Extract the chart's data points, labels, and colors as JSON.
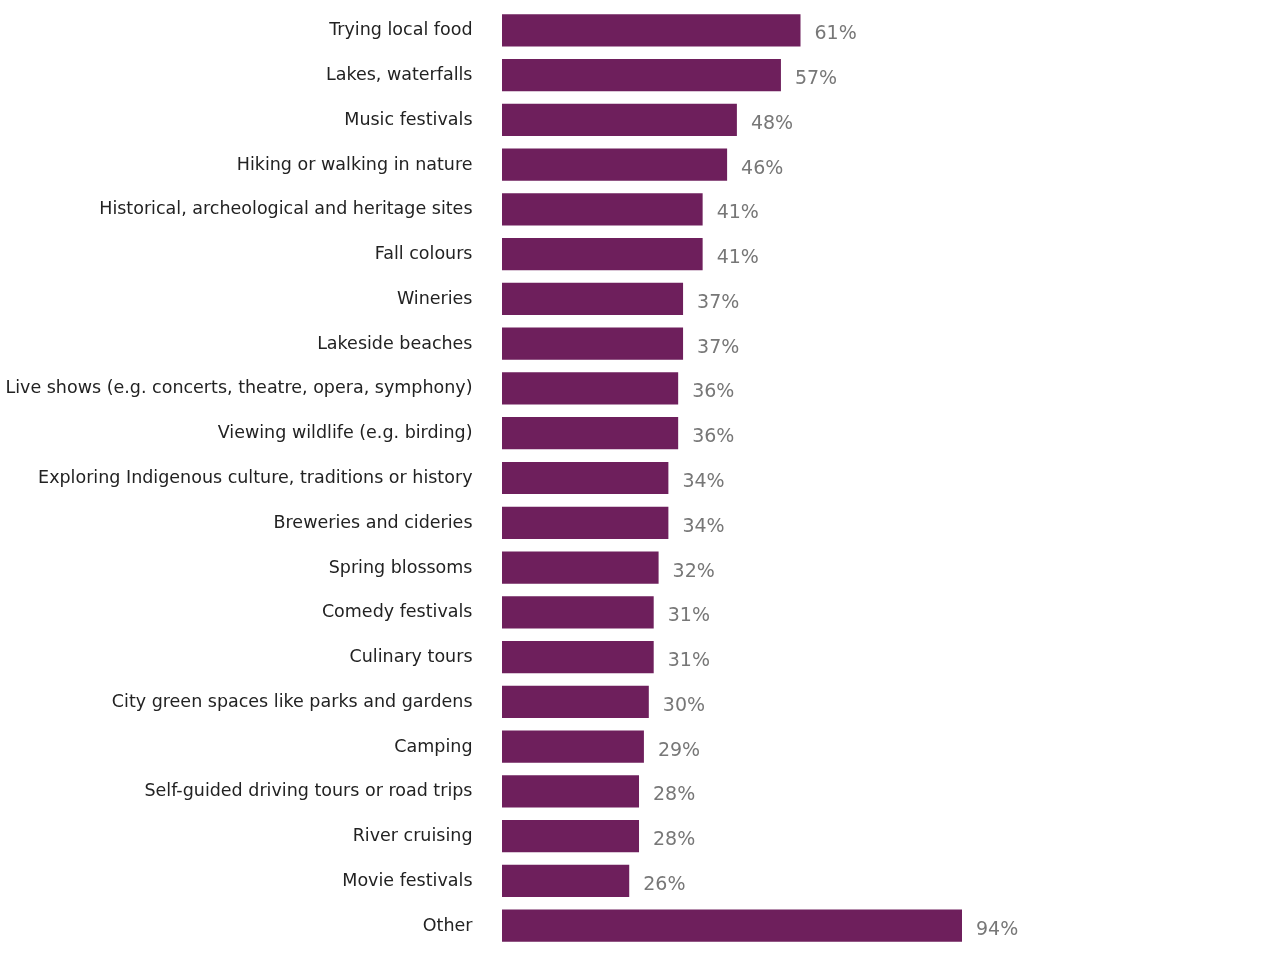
{
  "chart_data": {
    "type": "bar",
    "orientation": "horizontal",
    "color": "#6e1f5c",
    "categories": [
      "Trying local food",
      "Lakes, waterfalls",
      "Music festivals",
      "Hiking or walking in nature",
      "Historical, archeological and heritage sites",
      "Fall colours",
      "Wineries",
      "Lakeside beaches",
      "Live shows (e.g. concerts, theatre, opera, symphony)",
      "Viewing wildlife (e.g. birding)",
      "Exploring Indigenous culture, traditions or history",
      "Breweries and cideries",
      "Spring blossoms",
      "Comedy festivals",
      "Culinary tours",
      "City green spaces like parks and gardens",
      "Camping",
      "Self-guided driving tours or road trips",
      "River cruising",
      "Movie festivals",
      "Other"
    ],
    "values": [
      61,
      57,
      48,
      46,
      41,
      41,
      37,
      37,
      36,
      36,
      34,
      34,
      32,
      31,
      31,
      30,
      29,
      28,
      28,
      26,
      94
    ],
    "value_labels": [
      "61%",
      "57%",
      "48%",
      "46%",
      "41%",
      "41%",
      "37%",
      "37%",
      "36%",
      "36%",
      "34%",
      "34%",
      "32%",
      "31%",
      "31%",
      "30%",
      "29%",
      "28%",
      "28%",
      "26%",
      "94%"
    ],
    "grid": false
  }
}
